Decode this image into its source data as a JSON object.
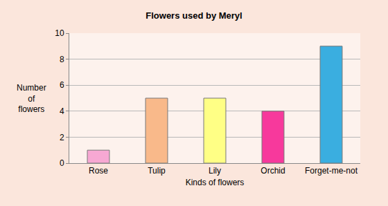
{
  "chart_data": {
    "type": "bar",
    "title": "Flowers used by Meryl",
    "x_label": "Kinds of flowers",
    "y_label": "Number of flowers",
    "categories": [
      "Rose",
      "Tulip",
      "Lily",
      "Orchid",
      "Forget-me-not"
    ],
    "values": [
      1,
      5,
      5,
      4,
      9
    ],
    "colors": [
      "#f7a8d3",
      "#f9b98a",
      "#ffff85",
      "#f7399c",
      "#3aaee0"
    ],
    "ylim": [
      0,
      10
    ],
    "yticks": [
      0,
      2,
      4,
      6,
      8,
      10
    ],
    "grid": true
  }
}
